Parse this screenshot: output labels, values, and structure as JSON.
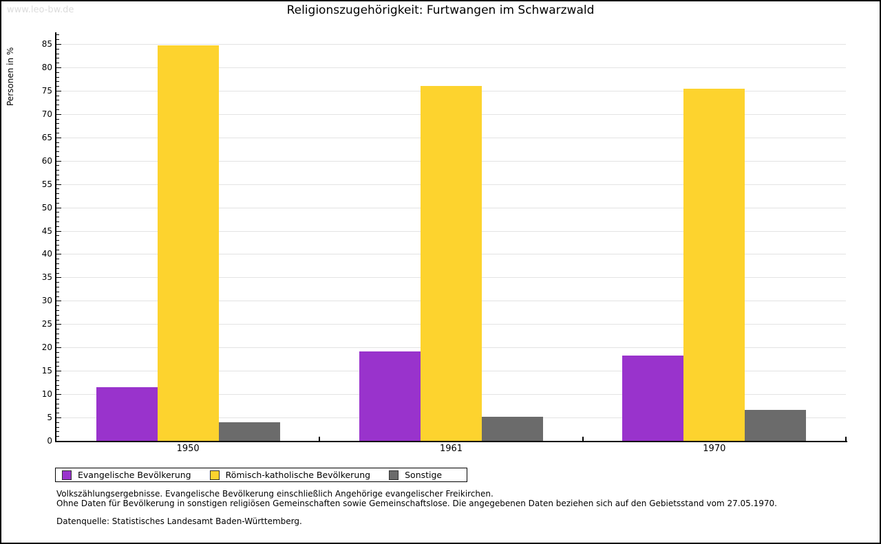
{
  "watermark": "www.leo-bw.de",
  "header": {
    "title": "Religionszugehörigkeit: Furtwangen im Schwarzwald"
  },
  "chart_data": {
    "type": "bar",
    "title": "Religionszugehörigkeit: Furtwangen im Schwarzwald",
    "xlabel": "",
    "ylabel": "Personen in %",
    "categories": [
      "1950",
      "1961",
      "1970"
    ],
    "series": [
      {
        "name": "Evangelische Bevölkerung",
        "color": "#9933cc",
        "values": [
          11.5,
          19.1,
          18.2
        ]
      },
      {
        "name": "Römisch-katholische Bevölkerung",
        "color": "#fdd32e",
        "values": [
          84.7,
          76.0,
          75.4
        ]
      },
      {
        "name": "Sonstige",
        "color": "#6b6b6b",
        "values": [
          4.0,
          5.2,
          6.6
        ]
      }
    ],
    "ylim": [
      0,
      85
    ],
    "y_major_step": 5,
    "y_minor_step": 1,
    "grid": true,
    "legend_position": "bottom"
  },
  "footer": {
    "note_line1": "Volkszählungsergebnisse. Evangelische Bevölkerung einschließlich Angehörige evangelischer Freikirchen.",
    "note_line2": "Ohne Daten für Bevölkerung in sonstigen religiösen Gemeinschaften sowie Gemeinschaftslose. Die angegebenen Daten beziehen sich auf den Gebietsstand vom 27.05.1970.",
    "source": "Datenquelle: Statistisches Landesamt Baden-Württemberg."
  },
  "colors": {
    "grid": "#e3e3e3",
    "axis": "#000000",
    "watermark": "#dcdcdc"
  }
}
